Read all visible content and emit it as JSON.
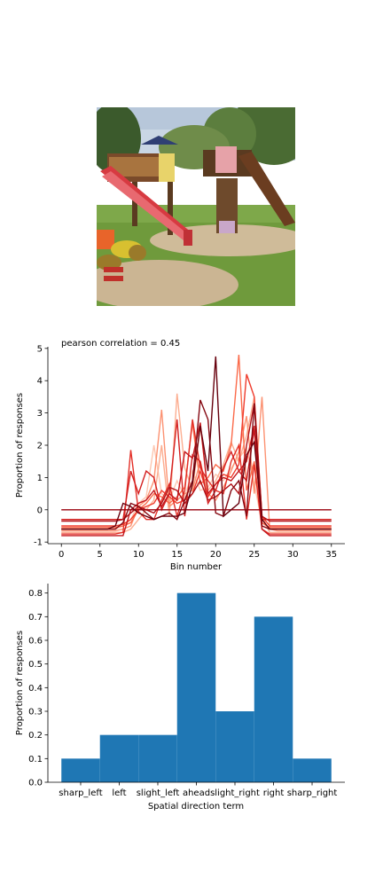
{
  "photo": {
    "subject": "playground-slide"
  },
  "chart_data": [
    {
      "type": "line",
      "annotation": "pearson correlation = 0.45",
      "xlabel": "Bin number",
      "ylabel": "Proportion of responses",
      "xlim": [
        -1.75,
        36.75
      ],
      "ylim": [
        -1.05,
        5.05
      ],
      "xticks": [
        0,
        5,
        10,
        15,
        20,
        25,
        30,
        35
      ],
      "yticks": [
        -1,
        0,
        1,
        2,
        3,
        4,
        5
      ],
      "colormap": "Reds",
      "x": [
        0,
        1,
        2,
        3,
        4,
        5,
        6,
        7,
        8,
        9,
        10,
        11,
        12,
        13,
        14,
        15,
        16,
        17,
        18,
        19,
        20,
        21,
        22,
        23,
        24,
        25,
        26,
        27,
        28,
        29,
        30,
        31,
        32,
        33,
        34,
        35
      ],
      "series": [
        {
          "color": "#fdc6b0",
          "values": [
            -0.6,
            -0.6,
            -0.6,
            -0.6,
            -0.6,
            -0.6,
            -0.6,
            -0.6,
            -0.5,
            -0.3,
            0.2,
            0.4,
            2.0,
            0.5,
            0.3,
            0.9,
            0.4,
            1.2,
            0.6,
            0.7,
            1.1,
            0.9,
            1.3,
            1.6,
            1.9,
            0.8,
            -0.4,
            -0.6,
            -0.6,
            -0.6,
            -0.6,
            -0.6,
            -0.6,
            -0.6,
            -0.6,
            -0.6
          ]
        },
        {
          "color": "#fcae91",
          "values": [
            -0.7,
            -0.7,
            -0.7,
            -0.7,
            -0.7,
            -0.7,
            -0.7,
            -0.7,
            -0.7,
            -0.6,
            -0.3,
            0.0,
            0.3,
            2.0,
            -0.2,
            3.6,
            1.3,
            0.6,
            2.6,
            0.6,
            0.9,
            1.4,
            2.1,
            1.5,
            2.3,
            3.5,
            -0.2,
            -0.7,
            -0.7,
            -0.7,
            -0.7,
            -0.7,
            -0.7,
            -0.7,
            -0.7,
            -0.7
          ]
        },
        {
          "color": "#fc9272",
          "values": [
            -0.65,
            -0.65,
            -0.65,
            -0.65,
            -0.65,
            -0.65,
            -0.65,
            -0.65,
            -0.6,
            -0.5,
            0.1,
            0.3,
            0.9,
            3.1,
            0.1,
            0.3,
            0.5,
            0.6,
            1.5,
            0.5,
            0.3,
            0.7,
            1.2,
            1.8,
            2.9,
            0.5,
            3.5,
            -0.6,
            -0.65,
            -0.65,
            -0.65,
            -0.65,
            -0.65,
            -0.65,
            -0.65,
            -0.65
          ]
        },
        {
          "color": "#fb6a4a",
          "values": [
            -0.55,
            -0.55,
            -0.55,
            -0.55,
            -0.55,
            -0.55,
            -0.55,
            -0.55,
            -0.5,
            -0.4,
            0.0,
            0.2,
            0.5,
            0.4,
            0.2,
            0.4,
            0.7,
            2.7,
            0.8,
            1.0,
            1.4,
            1.2,
            2.0,
            4.8,
            0.6,
            1.5,
            -0.4,
            -0.55,
            -0.55,
            -0.55,
            -0.55,
            -0.55,
            -0.55,
            -0.55,
            -0.55,
            -0.55
          ]
        },
        {
          "color": "#ef3b2c",
          "values": [
            -0.5,
            -0.5,
            -0.5,
            -0.5,
            -0.5,
            -0.5,
            -0.5,
            -0.5,
            -0.45,
            -0.3,
            0.0,
            0.1,
            0.2,
            0.6,
            0.4,
            0.2,
            0.3,
            0.5,
            1.2,
            0.4,
            0.8,
            1.1,
            1.0,
            1.4,
            4.2,
            3.5,
            -0.2,
            -0.5,
            -0.5,
            -0.5,
            -0.5,
            -0.5,
            -0.5,
            -0.5,
            -0.5,
            -0.5
          ]
        },
        {
          "color": "#e32f27",
          "values": [
            -0.75,
            -0.75,
            -0.75,
            -0.75,
            -0.75,
            -0.75,
            -0.75,
            -0.75,
            -0.7,
            1.85,
            -0.05,
            -0.3,
            -0.3,
            0.3,
            0.8,
            -0.2,
            0.6,
            2.8,
            1.3,
            0.9,
            0.6,
            0.5,
            1.5,
            2.0,
            -0.3,
            1.4,
            -0.6,
            -0.75,
            -0.75,
            -0.75,
            -0.75,
            -0.75,
            -0.75,
            -0.75,
            -0.75,
            -0.75
          ]
        },
        {
          "color": "#d42020",
          "values": [
            -0.3,
            -0.3,
            -0.3,
            -0.3,
            -0.3,
            -0.3,
            -0.3,
            -0.3,
            -0.3,
            1.2,
            0.5,
            1.2,
            1.0,
            0.0,
            0.5,
            2.8,
            -0.2,
            1.7,
            1.5,
            0.2,
            0.6,
            1.3,
            1.8,
            1.2,
            1.5,
            2.6,
            -0.3,
            -0.3,
            -0.3,
            -0.3,
            -0.3,
            -0.3,
            -0.3,
            -0.3,
            -0.3,
            -0.3
          ]
        },
        {
          "color": "#c4161c",
          "values": [
            -0.8,
            -0.8,
            -0.8,
            -0.8,
            -0.8,
            -0.8,
            -0.8,
            -0.8,
            -0.8,
            0.0,
            0.2,
            0.3,
            0.6,
            0.1,
            0.5,
            0.3,
            1.8,
            1.6,
            2.7,
            0.5,
            0.8,
            1.0,
            0.9,
            1.2,
            0.9,
            2.5,
            -0.6,
            -0.8,
            -0.8,
            -0.8,
            -0.8,
            -0.8,
            -0.8,
            -0.8,
            -0.8,
            -0.8
          ]
        },
        {
          "color": "#b11218",
          "values": [
            -0.35,
            -0.35,
            -0.35,
            -0.35,
            -0.35,
            -0.35,
            -0.35,
            -0.35,
            -0.3,
            -0.1,
            0.1,
            0.0,
            -0.1,
            0.2,
            0.7,
            0.6,
            0.2,
            0.5,
            0.9,
            0.3,
            0.4,
            0.6,
            0.8,
            0.5,
            2.0,
            3.3,
            -0.2,
            -0.35,
            -0.35,
            -0.35,
            -0.35,
            -0.35,
            -0.35,
            -0.35,
            -0.35,
            -0.35
          ]
        },
        {
          "color": "#99000d",
          "values": [
            0.0,
            0.0,
            0.0,
            0.0,
            0.0,
            0.0,
            0.0,
            0.0,
            0.0,
            0.0,
            0.0,
            0.0,
            0.0,
            0.0,
            0.0,
            0.0,
            0.0,
            0.0,
            0.0,
            0.0,
            0.0,
            0.0,
            0.0,
            0.0,
            0.0,
            0.0,
            0.0,
            0.0,
            0.0,
            0.0,
            0.0,
            0.0,
            0.0,
            0.0,
            0.0,
            0.0
          ]
        },
        {
          "color": "#850812",
          "values": [
            -0.6,
            -0.6,
            -0.6,
            -0.6,
            -0.6,
            -0.6,
            -0.6,
            -0.6,
            -0.4,
            0.2,
            0.1,
            -0.1,
            -0.3,
            -0.2,
            -0.1,
            -0.3,
            0.3,
            0.9,
            3.4,
            2.8,
            -0.1,
            -0.2,
            0.6,
            0.9,
            -0.2,
            3.3,
            -0.5,
            -0.6,
            -0.6,
            -0.6,
            -0.6,
            -0.6,
            -0.6,
            -0.6,
            -0.6,
            -0.6
          ]
        },
        {
          "color": "#67000d",
          "values": [
            -0.6,
            -0.6,
            -0.6,
            -0.6,
            -0.6,
            -0.6,
            -0.6,
            -0.5,
            0.2,
            0.1,
            -0.1,
            -0.2,
            -0.3,
            -0.2,
            -0.2,
            -0.2,
            -0.1,
            0.8,
            2.6,
            1.2,
            4.75,
            -0.2,
            0.0,
            0.2,
            1.7,
            2.1,
            -0.3,
            -0.6,
            -0.6,
            -0.6,
            -0.6,
            -0.6,
            -0.6,
            -0.6,
            -0.6,
            -0.6
          ]
        }
      ]
    },
    {
      "type": "bar",
      "xlabel": "Spatial direction term",
      "ylabel": "Proportion of responses",
      "categories": [
        "sharp_left",
        "left",
        "slight_left",
        "ahead",
        "slight_right",
        "right",
        "sharp_right"
      ],
      "values": [
        0.1,
        0.2,
        0.2,
        0.8,
        0.3,
        0.7,
        0.1
      ],
      "ylim": [
        0,
        0.84
      ],
      "yticks": [
        "0.0",
        "0.1",
        "0.2",
        "0.3",
        "0.4",
        "0.5",
        "0.6",
        "0.7",
        "0.8"
      ],
      "bar_color": "#1f77b4"
    }
  ]
}
